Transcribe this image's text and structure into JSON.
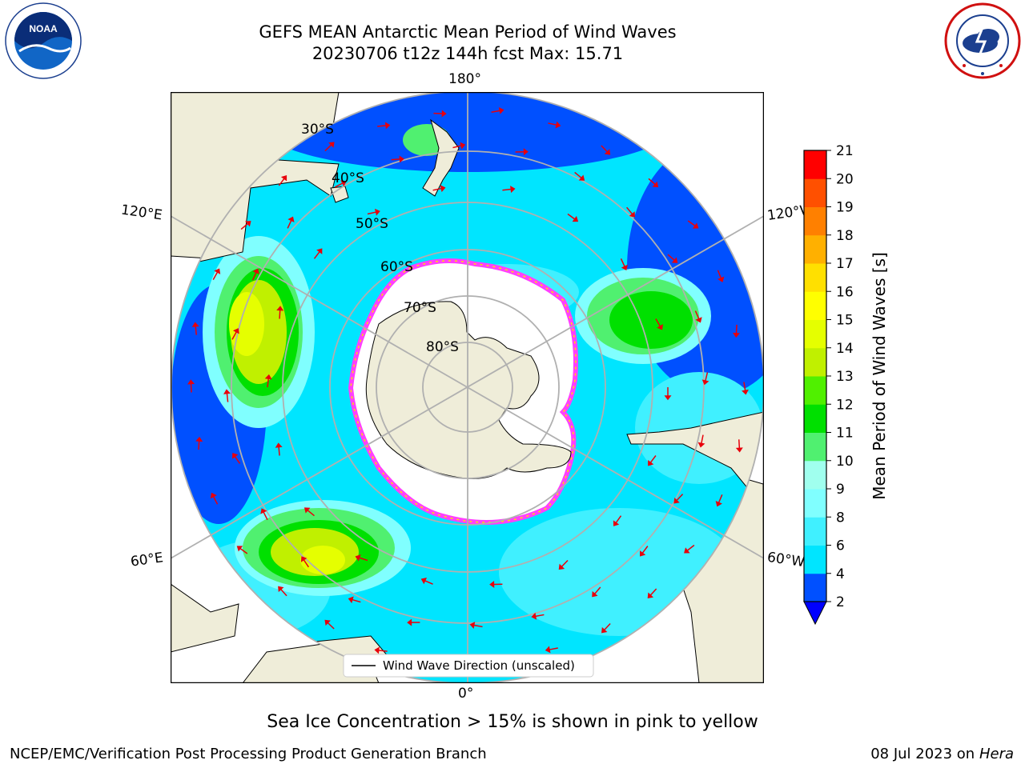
{
  "header": {
    "title_line1": "GEFS MEAN Antarctic Mean Period of Wind Waves",
    "title_line2": "20230706 t12z 144h fcst   Max: 15.71"
  },
  "logos": {
    "left": "noaa-logo",
    "right": "national-weather-service-logo",
    "noaa_text": "NOAA",
    "nws_text": "NATIONAL WEATHER SERVICE"
  },
  "map": {
    "projection": "south-polar-stereographic",
    "longitude_labels": {
      "top": "180°",
      "bottom": "0°",
      "upper_left": "120°E",
      "upper_right": "120°W",
      "lower_left": "60°E",
      "lower_right": "60°W"
    },
    "latitude_labels": [
      "30°S",
      "40°S",
      "50°S",
      "60°S",
      "70°S",
      "80°S"
    ],
    "legend": "Wind Wave Direction (unscaled)",
    "colors": {
      "land": "#efedd9",
      "graticule": "#b0b0b0",
      "arrows": "#e8000b",
      "ice_edge": [
        "#ff40ff",
        "#ffe000"
      ]
    }
  },
  "colorbar": {
    "label": "Mean Period of Wind Waves [s]",
    "ticks": [
      "2",
      "4",
      "6",
      "8",
      "9",
      "10",
      "11",
      "12",
      "13",
      "14",
      "15",
      "16",
      "17",
      "18",
      "19",
      "20",
      "21"
    ],
    "colors": [
      "#0050ff",
      "#00e5ff",
      "#40f0ff",
      "#80ffff",
      "#a0ffee",
      "#50f070",
      "#00e000",
      "#50f000",
      "#c0f000",
      "#e5ff00",
      "#ffff00",
      "#ffe000",
      "#ffb000",
      "#ff8000",
      "#ff5000",
      "#ff0000"
    ],
    "under_color": "#0000ff"
  },
  "caption": "Sea Ice Concentration > 15% is shown in pink to yellow",
  "footer": {
    "left": "NCEP/EMC/Verification Post Processing Product Generation Branch",
    "right_prefix": "08 Jul 2023 on ",
    "right_host": "Hera"
  }
}
